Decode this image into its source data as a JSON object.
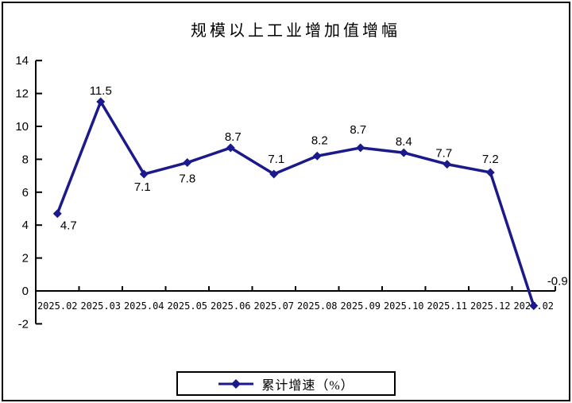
{
  "chart_data": {
    "type": "line",
    "title": "规模以上工业增加值增幅",
    "categories": [
      "2025.02",
      "2025.03",
      "2025.04",
      "2025.05",
      "2025.06",
      "2025.07",
      "2025.08",
      "2025.09",
      "2025.10",
      "2025.11",
      "2025.12",
      "2026.02"
    ],
    "series": [
      {
        "name": "累计增速（%）",
        "color": "#1A1A8C",
        "values": [
          4.7,
          11.5,
          7.1,
          7.8,
          8.7,
          7.1,
          8.2,
          8.7,
          8.4,
          7.7,
          7.2,
          -0.9
        ]
      }
    ],
    "ylim": [
      -2,
      14
    ],
    "ytick_step": 2,
    "xlabel": "",
    "ylabel": "",
    "grid": false,
    "data_labels": true,
    "marker": "diamond",
    "legend_position": "bottom",
    "axis_color": "#000000",
    "text_color": "#000000",
    "background": "#ffffff"
  }
}
